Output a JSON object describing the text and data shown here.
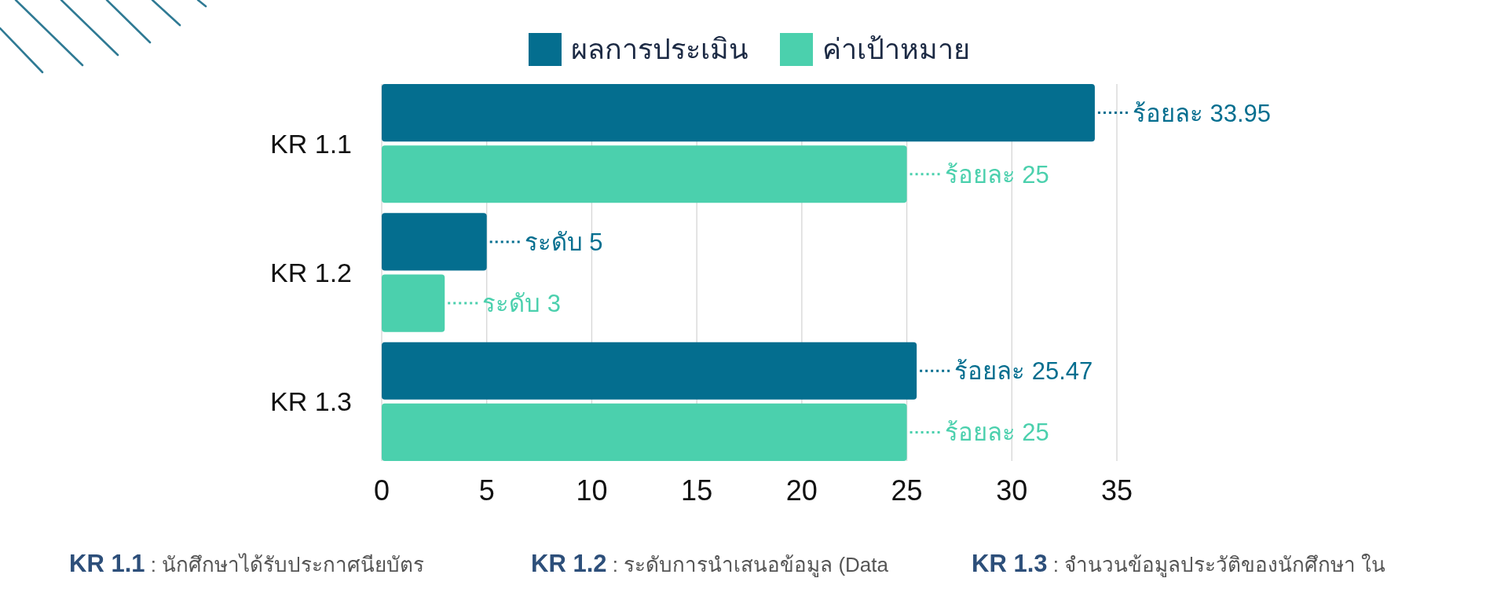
{
  "chart_data": {
    "type": "bar",
    "orientation": "horizontal",
    "categories": [
      "KR 1.1",
      "KR 1.2",
      "KR 1.3"
    ],
    "series": [
      {
        "name": "ผลการประเมิน",
        "color": "#046e8f",
        "values": [
          33.95,
          5,
          25.47
        ],
        "value_labels": [
          "ร้อยละ 33.95",
          "ระดับ 5",
          "ร้อยละ 25.47"
        ]
      },
      {
        "name": "ค่าเป้าหมาย",
        "color": "#4bd0ad",
        "values": [
          25,
          3,
          25
        ],
        "value_labels": [
          "ร้อยละ 25",
          "ระดับ 3",
          "ร้อยละ 25"
        ]
      }
    ],
    "xlim": [
      0,
      35
    ],
    "xticks": [
      0,
      5,
      10,
      15,
      20,
      25,
      30,
      35
    ],
    "grid": "x",
    "legend": "top",
    "annotations": [
      "**KR 1.1** : นักศึกษาได้รับประกาศนียบัตร",
      "**KR 1.2** : ระดับการนำเสนอข้อมูล (Data",
      "**KR 1.3** : จำนวนข้อมูลประวัติของนักศึกษา ใน"
    ]
  }
}
